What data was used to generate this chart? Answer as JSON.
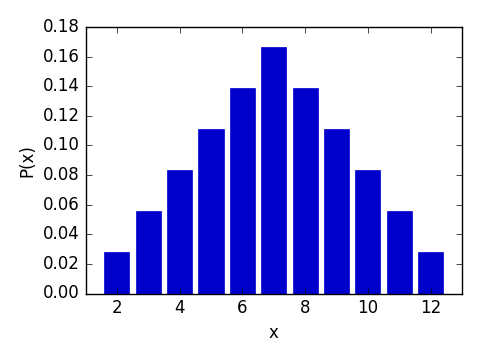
{
  "x_values": [
    2,
    3,
    4,
    5,
    6,
    7,
    8,
    9,
    10,
    11,
    12
  ],
  "probabilities": [
    0.027778,
    0.055556,
    0.083333,
    0.111111,
    0.138889,
    0.166667,
    0.138889,
    0.111111,
    0.083333,
    0.055556,
    0.027778
  ],
  "bar_color": "#0000cc",
  "bar_edge_color": "#0000cc",
  "xlabel": "x",
  "ylabel": "P(x)",
  "xlim": [
    1,
    13
  ],
  "ylim": [
    0,
    0.18
  ],
  "xticks": [
    2,
    4,
    6,
    8,
    10,
    12
  ],
  "yticks": [
    0.0,
    0.02,
    0.04,
    0.06,
    0.08,
    0.1,
    0.12,
    0.14,
    0.16,
    0.18
  ],
  "bar_width": 0.8,
  "figsize": [
    4.8,
    3.6
  ],
  "dpi": 100,
  "background_color": "#ffffff"
}
